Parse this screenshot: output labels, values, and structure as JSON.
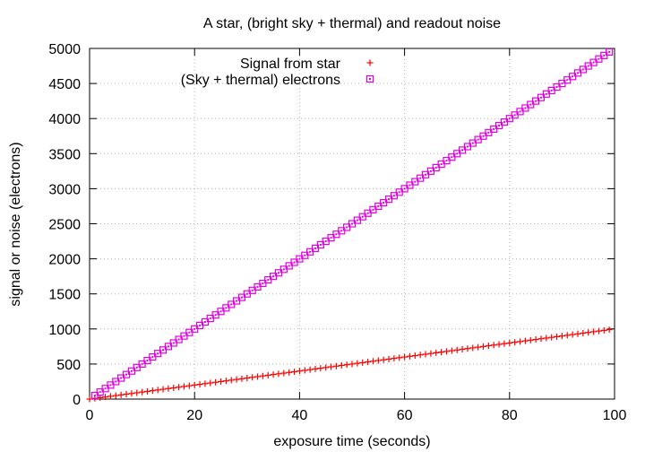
{
  "chart_data": {
    "type": "scatter",
    "title": "A star, (bright sky + thermal) and readout noise",
    "xlabel": "exposure time (seconds)",
    "ylabel": "signal or noise (electrons)",
    "xlim": [
      0,
      100
    ],
    "ylim": [
      0,
      5000
    ],
    "x_ticks": [
      "0",
      "20",
      "40",
      "60",
      "80",
      "100"
    ],
    "y_ticks": [
      "0",
      "500",
      "1000",
      "1500",
      "2000",
      "2500",
      "3000",
      "3500",
      "4000",
      "4500",
      "5000"
    ],
    "grid": true,
    "legend_position": "top-center",
    "series": [
      {
        "name": "Signal from star",
        "marker": "plus",
        "color": "#ff0000",
        "slope": 10,
        "x_start": 0,
        "x_end": 99,
        "x_step": 1
      },
      {
        "name": "(Sky + thermal) electrons",
        "marker": "square",
        "color": "#e100e1",
        "slope": 50,
        "x_start": 1,
        "x_end": 99,
        "x_step": 1
      }
    ]
  }
}
